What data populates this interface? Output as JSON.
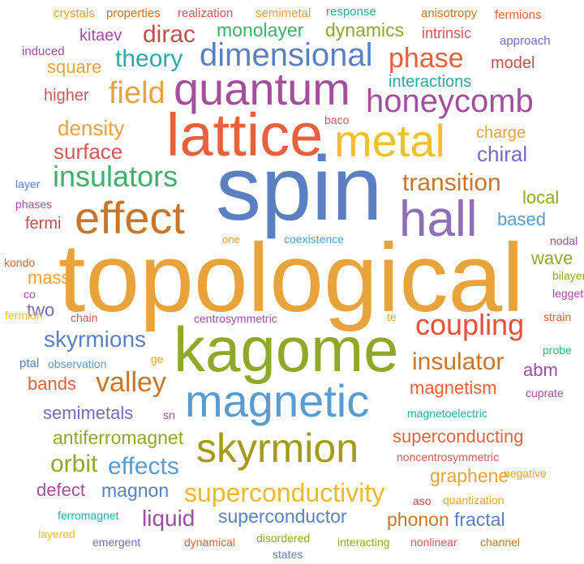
{
  "word_cloud": {
    "words": [
      {
        "text": "topological",
        "color": "#E8A33D"
      },
      {
        "text": "spin",
        "color": "#5B80C2"
      },
      {
        "text": "lattice",
        "color": "#E8603C"
      },
      {
        "text": "kagome",
        "color": "#8EA82A"
      },
      {
        "text": "magnetic",
        "color": "#5A9BD0"
      },
      {
        "text": "quantum",
        "color": "#A2509B"
      },
      {
        "text": "metal",
        "color": "#F0C030"
      },
      {
        "text": "hall",
        "color": "#8E6FB5"
      },
      {
        "text": "effect",
        "color": "#C9762A"
      },
      {
        "text": "skyrmion",
        "color": "#A39A1E"
      },
      {
        "text": "dimensional",
        "color": "#5B80C2"
      },
      {
        "text": "honeycomb",
        "color": "#A2509B"
      },
      {
        "text": "insulators",
        "color": "#3FAF6E"
      },
      {
        "text": "coupling",
        "color": "#E8503C"
      },
      {
        "text": "superconductivity",
        "color": "#F0B830"
      },
      {
        "text": "field",
        "color": "#E8A33D"
      },
      {
        "text": "theory",
        "color": "#2EA8A0"
      },
      {
        "text": "dirac",
        "color": "#C0504D"
      },
      {
        "text": "phase",
        "color": "#E8603C"
      },
      {
        "text": "valley",
        "color": "#C9762A"
      },
      {
        "text": "insulator",
        "color": "#C9762A"
      },
      {
        "text": "transition",
        "color": "#C9762A"
      },
      {
        "text": "skyrmions",
        "color": "#5B80C2"
      },
      {
        "text": "effects",
        "color": "#5A9BD0"
      },
      {
        "text": "orbit",
        "color": "#8EA82A"
      },
      {
        "text": "density",
        "color": "#E8A33D"
      },
      {
        "text": "surface",
        "color": "#D05A5A"
      },
      {
        "text": "chiral",
        "color": "#7B68C0"
      },
      {
        "text": "superconducting",
        "color": "#E8603C"
      },
      {
        "text": "liquid",
        "color": "#9B4FA0"
      },
      {
        "text": "superconductor",
        "color": "#5B80C2"
      },
      {
        "text": "monolayer",
        "color": "#3FAF6E"
      },
      {
        "text": "dynamics",
        "color": "#8EA82A"
      },
      {
        "text": "magnon",
        "color": "#5B80C2"
      },
      {
        "text": "semimetals",
        "color": "#7B68C0"
      },
      {
        "text": "antiferromagnet",
        "color": "#8EA82A"
      },
      {
        "text": "phonon",
        "color": "#C9762A"
      },
      {
        "text": "fractal",
        "color": "#5B80C2"
      },
      {
        "text": "graphene",
        "color": "#E8A33D"
      },
      {
        "text": "magnetism",
        "color": "#E8603C"
      },
      {
        "text": "square",
        "color": "#E8A33D"
      },
      {
        "text": "interactions",
        "color": "#2EA8A0"
      },
      {
        "text": "model",
        "color": "#C0504D"
      },
      {
        "text": "local",
        "color": "#8EA82A"
      },
      {
        "text": "based",
        "color": "#5A9BD0"
      },
      {
        "text": "wave",
        "color": "#8EA82A"
      },
      {
        "text": "bands",
        "color": "#E8603C"
      },
      {
        "text": "defect",
        "color": "#A2509B"
      },
      {
        "text": "abm",
        "color": "#9B4FA0"
      },
      {
        "text": "mass",
        "color": "#E8A33D"
      },
      {
        "text": "two",
        "color": "#7B68C0"
      },
      {
        "text": "kitaev",
        "color": "#9B4FA0"
      },
      {
        "text": "higher",
        "color": "#D05A5A"
      },
      {
        "text": "charge",
        "color": "#E8A33D"
      },
      {
        "text": "fermi",
        "color": "#C0504D"
      },
      {
        "text": "intrinsic",
        "color": "#D05A5A"
      },
      {
        "text": "crystals",
        "color": "#E8A33D"
      },
      {
        "text": "properties",
        "color": "#C9762A"
      },
      {
        "text": "realization",
        "color": "#D05A5A"
      },
      {
        "text": "semimetal",
        "color": "#E8A33D"
      },
      {
        "text": "response",
        "color": "#2EA8A0"
      },
      {
        "text": "anisotropy",
        "color": "#C9762A"
      },
      {
        "text": "fermions",
        "color": "#E8603C"
      },
      {
        "text": "induced",
        "color": "#A2509B"
      },
      {
        "text": "approach",
        "color": "#7B68C0"
      },
      {
        "text": "baco",
        "color": "#D05A5A"
      },
      {
        "text": "layer",
        "color": "#5B80C2"
      },
      {
        "text": "phases",
        "color": "#A2509B"
      },
      {
        "text": "one",
        "color": "#E8A33D"
      },
      {
        "text": "coexistence",
        "color": "#5A9BD0"
      },
      {
        "text": "nodal",
        "color": "#9B4FA0"
      },
      {
        "text": "kondo",
        "color": "#E8603C"
      },
      {
        "text": "co",
        "color": "#A2509B"
      },
      {
        "text": "bilayer",
        "color": "#8EA82A"
      },
      {
        "text": "leggett",
        "color": "#A2509B"
      },
      {
        "text": "fermion",
        "color": "#F0C030"
      },
      {
        "text": "chain",
        "color": "#D05A5A"
      },
      {
        "text": "centrosymmetric",
        "color": "#9B4FA0"
      },
      {
        "text": "te",
        "color": "#E8A33D"
      },
      {
        "text": "strain",
        "color": "#E8603C"
      },
      {
        "text": "ptal",
        "color": "#5B80C2"
      },
      {
        "text": "observation",
        "color": "#5A9BD0"
      },
      {
        "text": "ge",
        "color": "#E8A33D"
      },
      {
        "text": "probe",
        "color": "#3FAF6E"
      },
      {
        "text": "cuprate",
        "color": "#A2509B"
      },
      {
        "text": "sn",
        "color": "#9B4FA0"
      },
      {
        "text": "magnetoelectric",
        "color": "#2EA8A0"
      },
      {
        "text": "noncentrosymmetric",
        "color": "#D05A5A"
      },
      {
        "text": "negative",
        "color": "#E8A33D"
      },
      {
        "text": "aso",
        "color": "#C0504D"
      },
      {
        "text": "quantization",
        "color": "#E8A33D"
      },
      {
        "text": "ferromagnet",
        "color": "#2EA8A0"
      },
      {
        "text": "layered",
        "color": "#F0C030"
      },
      {
        "text": "emergent",
        "color": "#7B68C0"
      },
      {
        "text": "dynamical",
        "color": "#E8603C"
      },
      {
        "text": "disordered",
        "color": "#8EA82A"
      },
      {
        "text": "states",
        "color": "#5B80C2"
      },
      {
        "text": "interacting",
        "color": "#8EA82A"
      },
      {
        "text": "nonlinear",
        "color": "#D05A5A"
      },
      {
        "text": "channel",
        "color": "#C9762A"
      }
    ]
  }
}
